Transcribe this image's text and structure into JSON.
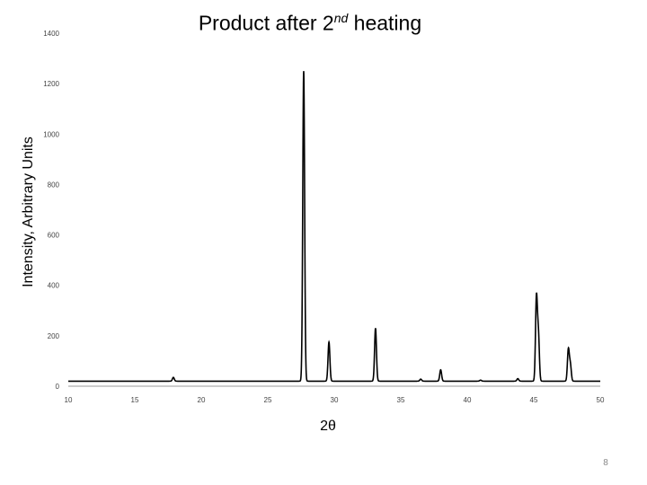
{
  "title_main": "Product after 2",
  "title_sup": "nd",
  "title_end": " heating",
  "page_number": "8",
  "chart_data": {
    "type": "line",
    "title": "Product after 2nd heating",
    "xlabel": "2θ",
    "ylabel": "Intensity, Arbitrary Units",
    "xlim": [
      10,
      50
    ],
    "ylim": [
      0,
      1400
    ],
    "xticks": [
      10,
      15,
      20,
      25,
      30,
      35,
      40,
      45,
      50
    ],
    "yticks": [
      0,
      200,
      400,
      600,
      800,
      1000,
      1200,
      1400
    ],
    "grid": false,
    "legend": "none",
    "baseline": 20,
    "series": [
      {
        "color": "#000000",
        "peaks": [
          {
            "x": 17.9,
            "y": 35
          },
          {
            "x": 27.7,
            "y": 1250
          },
          {
            "x": 29.6,
            "y": 175
          },
          {
            "x": 33.1,
            "y": 230
          },
          {
            "x": 36.5,
            "y": 28
          },
          {
            "x": 38.0,
            "y": 65
          },
          {
            "x": 41.0,
            "y": 24
          },
          {
            "x": 43.8,
            "y": 30
          },
          {
            "x": 45.2,
            "y": 350
          },
          {
            "x": 45.35,
            "y": 200
          },
          {
            "x": 47.6,
            "y": 145
          },
          {
            "x": 47.75,
            "y": 85
          }
        ]
      }
    ]
  }
}
